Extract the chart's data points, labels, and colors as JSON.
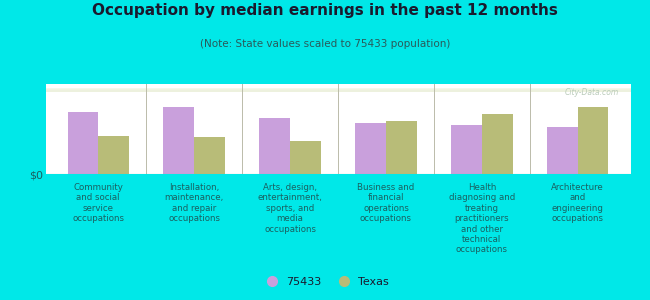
{
  "title": "Occupation by median earnings in the past 12 months",
  "subtitle": "(Note: State values scaled to 75433 population)",
  "categories": [
    "Community\nand social\nservice\noccupations",
    "Installation,\nmaintenance,\nand repair\noccupations",
    "Arts, design,\nentertainment,\nsports, and\nmedia\noccupations",
    "Business and\nfinancial\noperations\noccupations",
    "Health\ndiagnosing and\ntreating\npractitioners\nand other\ntechnical\noccupations",
    "Architecture\nand\nengineering\noccupations"
  ],
  "values_75433": [
    0.72,
    0.78,
    0.65,
    0.6,
    0.57,
    0.55
  ],
  "values_texas": [
    0.44,
    0.43,
    0.38,
    0.62,
    0.7,
    0.78
  ],
  "color_75433": "#c9a0dc",
  "color_texas": "#b8bc78",
  "background_color": "#00e8e8",
  "ylabel": "$0",
  "watermark": "City-Data.com",
  "legend_75433": "75433",
  "legend_texas": "Texas",
  "bar_width": 0.32,
  "title_color": "#1a1a2e",
  "subtitle_color": "#2a5a5a",
  "label_color": "#1a6060"
}
